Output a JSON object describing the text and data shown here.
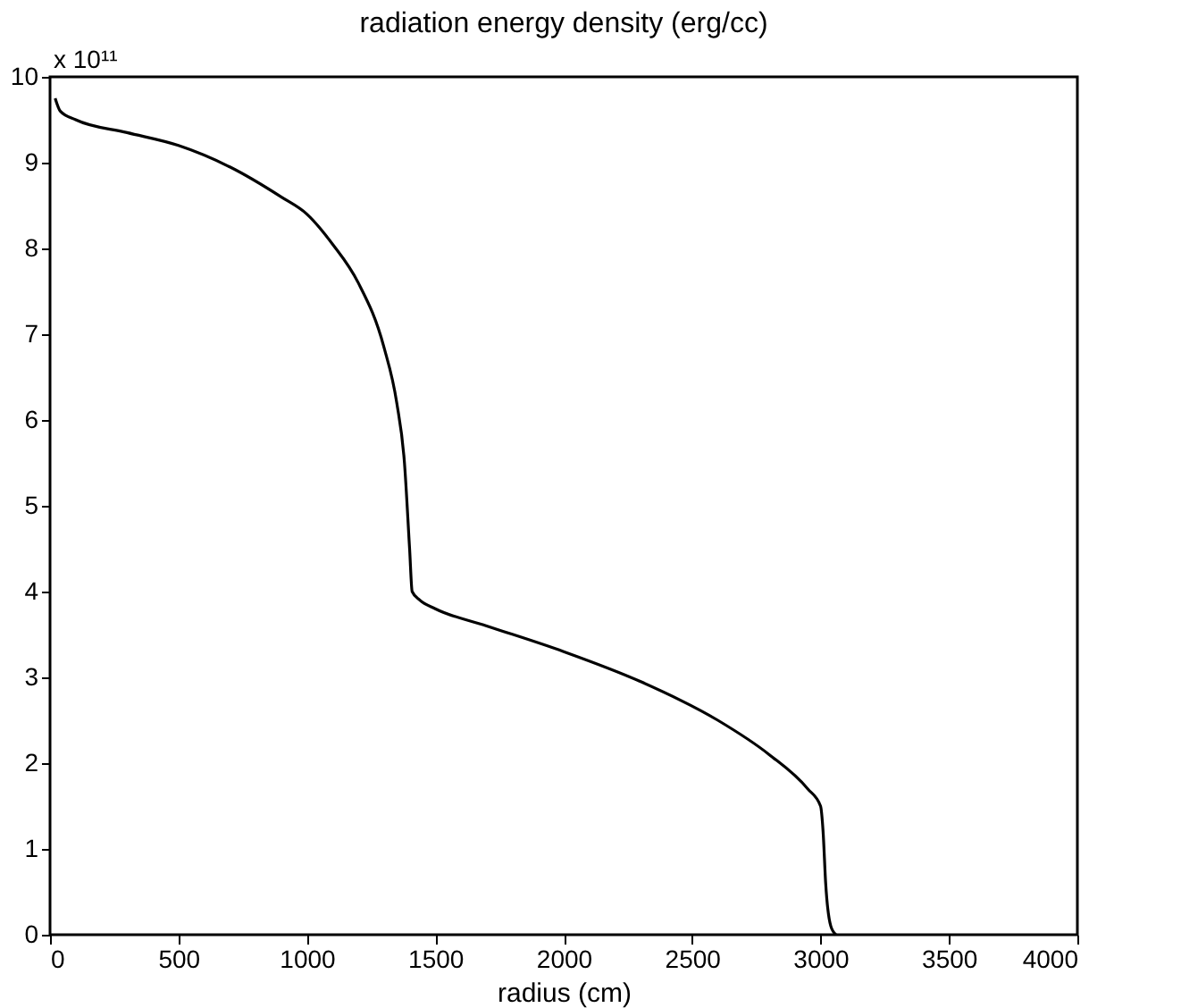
{
  "chart_data": {
    "type": "line",
    "title": "radiation energy density (erg/cc)",
    "xlabel": "radius (cm)",
    "annotations": [
      "x 10¹¹"
    ],
    "x": [
      20,
      40,
      100,
      300,
      500,
      700,
      900,
      1000,
      1100,
      1200,
      1300,
      1350,
      1380,
      1400,
      1410,
      1440,
      1500,
      1700,
      2000,
      2300,
      2600,
      2800,
      2950,
      3000,
      3010,
      3020,
      3040,
      3060
    ],
    "series": [
      {
        "color": "#000000",
        "values": [
          9.75,
          9.6,
          9.5,
          9.35,
          9.2,
          8.95,
          8.6,
          8.4,
          8.05,
          7.6,
          6.85,
          6.2,
          5.5,
          4.5,
          4.0,
          3.9,
          3.8,
          3.6,
          3.3,
          2.95,
          2.5,
          2.1,
          1.7,
          1.5,
          1.2,
          0.6,
          0.1,
          0
        ]
      }
    ],
    "xlim": [
      0,
      4000
    ],
    "xticks": [
      0,
      500,
      1000,
      1500,
      2000,
      2500,
      3000,
      3500,
      4000
    ],
    "ylim": [
      0,
      10
    ],
    "yticks": [
      0,
      1,
      2,
      3,
      4,
      5,
      6,
      7,
      8,
      9,
      10
    ],
    "grid": false,
    "marker": "none",
    "line_style": "solid"
  }
}
